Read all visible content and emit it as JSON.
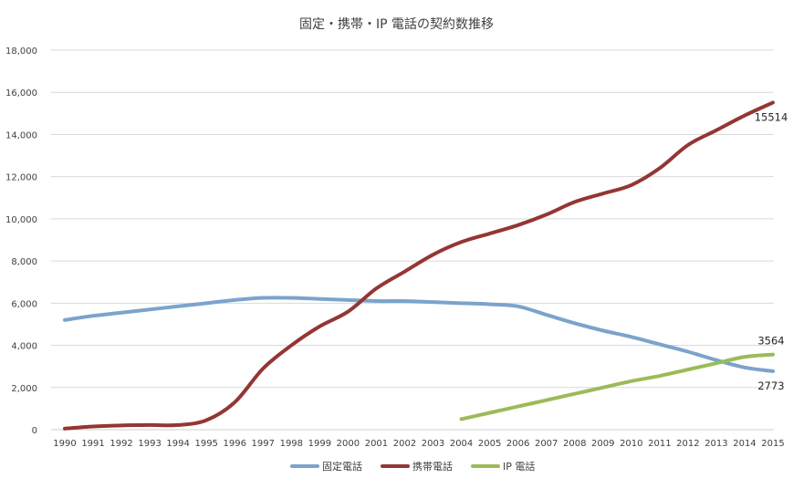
{
  "chart_data": {
    "type": "line",
    "title": "固定・携帯・IP 電話の契約数推移",
    "xlabel": "",
    "ylabel": "",
    "x": [
      "1990",
      "1991",
      "1992",
      "1993",
      "1994",
      "1995",
      "1996",
      "1997",
      "1998",
      "1999",
      "2000",
      "2001",
      "2002",
      "2003",
      "2004",
      "2005",
      "2006",
      "2007",
      "2008",
      "2009",
      "2010",
      "2011",
      "2012",
      "2013",
      "2014",
      "2015"
    ],
    "ylim": [
      0,
      18000
    ],
    "yticks": [
      "0",
      "2,000",
      "4,000",
      "6,000",
      "8,000",
      "10,000",
      "12,000",
      "14,000",
      "16,000",
      "18,000"
    ],
    "grid": true,
    "legend_position": "bottom",
    "series": [
      {
        "name": "固定電話",
        "color": "#7ba3cc",
        "values": [
          5200,
          5400,
          5550,
          5700,
          5850,
          6000,
          6150,
          6250,
          6250,
          6200,
          6150,
          6100,
          6100,
          6050,
          6000,
          5950,
          5850,
          5450,
          5050,
          4700,
          4400,
          4050,
          3700,
          3300,
          2950,
          2773
        ]
      },
      {
        "name": "携帯電話",
        "color": "#943634",
        "values": [
          50,
          150,
          200,
          220,
          220,
          450,
          1300,
          2900,
          4000,
          4900,
          5600,
          6700,
          7500,
          8300,
          8900,
          9300,
          9700,
          10200,
          10800,
          11200,
          11600,
          12400,
          13500,
          14200,
          14900,
          15514
        ]
      },
      {
        "name": "IP 電話",
        "color": "#9bbb59",
        "values": [
          null,
          null,
          null,
          null,
          null,
          null,
          null,
          null,
          null,
          null,
          null,
          null,
          null,
          null,
          500,
          800,
          1100,
          1400,
          1700,
          2000,
          2300,
          2550,
          2850,
          3150,
          3450,
          3564
        ]
      }
    ],
    "data_labels": [
      {
        "series": "携帯電話",
        "x": "2015",
        "text": "15514",
        "position": "below"
      },
      {
        "series": "IP 電話",
        "x": "2015",
        "text": "3564",
        "position": "above"
      },
      {
        "series": "固定電話",
        "x": "2015",
        "text": "2773",
        "position": "below"
      }
    ]
  }
}
